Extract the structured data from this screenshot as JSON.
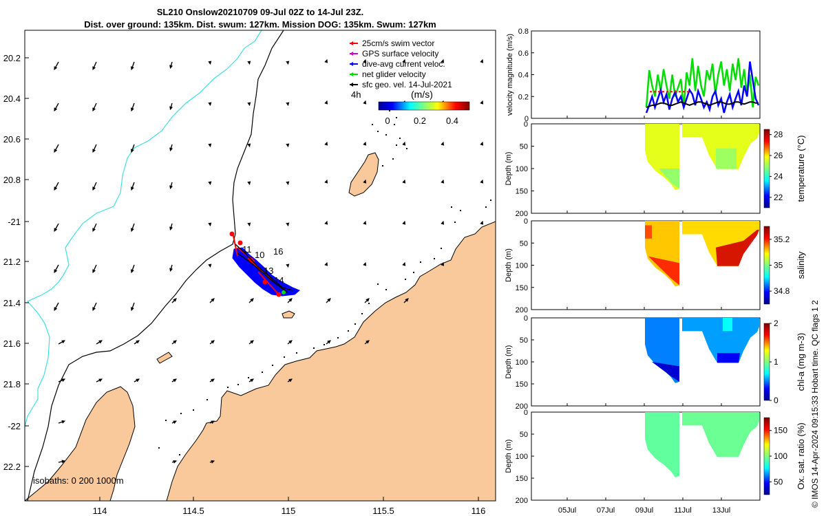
{
  "title": {
    "line1": "SL210 Onslow20210709 09-Jul 02Z to 14-Jul 23Z.",
    "line2": "Dist. over ground: 135km. Dist. swum: 127km. Mission DOG: 135km. Swum: 127km"
  },
  "map": {
    "lon_ticks": [
      "114",
      "114.5",
      "115",
      "115.5",
      "116"
    ],
    "lat_ticks": [
      "20.2",
      "20.4",
      "20.6",
      "20.8",
      "-21",
      "21.2",
      "21.4",
      "21.6",
      "21.8",
      "-22",
      "22.2"
    ],
    "legend": [
      {
        "label": "25cm/s swim vector",
        "color": "#ff0000"
      },
      {
        "label": "GPS surface velocity",
        "color": "#cc00cc"
      },
      {
        "label": "dive-avg current veloc.",
        "color": "#0000ff"
      },
      {
        "label": "net glider velocity",
        "color": "#00dd00"
      },
      {
        "label": "sfc geo. vel. 14-Jul-2021",
        "color": "#000000"
      }
    ],
    "scale_label": "4h",
    "colorbar_unit": "(m/s)",
    "colorbar_ticks": [
      "0",
      "0.2",
      "0.4"
    ],
    "isobaths_label": "isobaths: 0   200  1000m",
    "day_labels": [
      "11",
      "10",
      "16",
      "13",
      "14"
    ],
    "land_color": "#f9c99b",
    "shelf_line_color": "#40e0e0"
  },
  "chart_data": [
    {
      "type": "line",
      "ylabel": "velocity magnitude (m/s)",
      "ylim": [
        0,
        0.8
      ],
      "yticks": [
        "0",
        "0.2",
        "0.4",
        "0.6",
        "0.8"
      ],
      "series": [
        {
          "name": "net glider velocity",
          "color": "#00dd00",
          "values": [
            0.1,
            0.44,
            0.3,
            0.2,
            0.4,
            0.25,
            0.45,
            0.3,
            0.18,
            0.4,
            0.2,
            0.28,
            0.36,
            0.1,
            0.42,
            0.3,
            0.55,
            0.25,
            0.48,
            0.3,
            0.2,
            0.44,
            0.35,
            0.5,
            0.22,
            0.4,
            0.52,
            0.3,
            0.45,
            0.25,
            0.5,
            0.35,
            0.55,
            0.28,
            0.45,
            0.2,
            0.4,
            0.1,
            0.38,
            0.3
          ]
        },
        {
          "name": "dive-avg current veloc.",
          "color": "#0000ff",
          "values": [
            0.05,
            0.12,
            0.2,
            0.1,
            0.18,
            0.26,
            0.15,
            0.22,
            0.08,
            0.18,
            0.24,
            0.15,
            0.2,
            0.1,
            0.18,
            0.26,
            0.22,
            0.12,
            0.25,
            0.18,
            0.1,
            0.15,
            0.08,
            0.2,
            0.25,
            0.12,
            0.18,
            0.05,
            0.15,
            0.22,
            0.1,
            0.18,
            0.25,
            0.12,
            0.3,
            0.2,
            0.52,
            0.35,
            0.18,
            0.12
          ]
        },
        {
          "name": "sfc geo. vel. 14-Jul-2021",
          "color": "#000000",
          "values": [
            0.1,
            0.11,
            0.12,
            0.12,
            0.13,
            0.14,
            0.14,
            0.13,
            0.12,
            0.12,
            0.13,
            0.14,
            0.15,
            0.14,
            0.13,
            0.12,
            0.13,
            0.14,
            0.15,
            0.15,
            0.14,
            0.13,
            0.12,
            0.13,
            0.14,
            0.15,
            0.15,
            0.14,
            0.13,
            0.13,
            0.14,
            0.15,
            0.15,
            0.14,
            0.13,
            0.14,
            0.15,
            0.15,
            0.14,
            0.14
          ]
        }
      ]
    },
    {
      "type": "heatmap",
      "ylabel": "Depth (m)",
      "cbar_label": "temperature (°C)",
      "cbar_ticks": [
        "22",
        "24",
        "26",
        "28"
      ],
      "clim": [
        21,
        28.5
      ],
      "base_value": 25.5
    },
    {
      "type": "heatmap",
      "ylabel": "Depth (m)",
      "cbar_label": "salinity",
      "cbar_ticks": [
        "34.8",
        "35",
        "35.2"
      ],
      "clim": [
        34.7,
        35.3
      ],
      "base_value": 35.1
    },
    {
      "type": "heatmap",
      "ylabel": "Depth (m)",
      "cbar_label": "chl-a (mg m-3)",
      "cbar_ticks": [
        "0",
        "1",
        "2"
      ],
      "clim": [
        0,
        2
      ],
      "base_value": 0.6
    },
    {
      "type": "heatmap",
      "ylabel": "Depth (m)",
      "cbar_label": "Ox. sat. ratio (%)",
      "cbar_ticks": [
        "50",
        "100",
        "150"
      ],
      "clim": [
        25,
        175
      ],
      "base_value": 95
    }
  ],
  "depth_ticks": [
    "0",
    "50",
    "100",
    "150",
    "200"
  ],
  "time_ticks": [
    "05Jul",
    "07Jul",
    "09Jul",
    "11Jul",
    "13Jul"
  ],
  "footer": "© IMOS 14-Apr-2024 09:15:33 Hobart time. QC flags 1  2"
}
